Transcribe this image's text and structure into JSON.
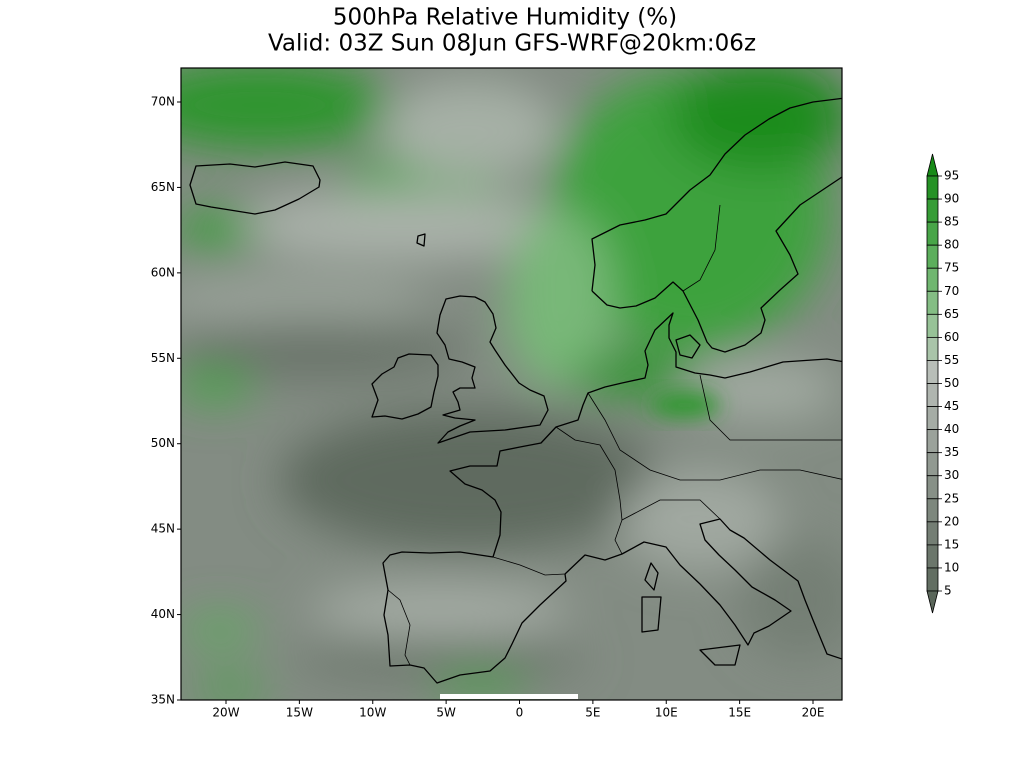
{
  "title": [
    "500hPa Relative Humidity (%)",
    "Valid: 03Z Sun 08Jun GFS-WRF@20km:06z"
  ],
  "lat_labels": [
    "70N",
    "65N",
    "60N",
    "55N",
    "50N",
    "45N",
    "40N",
    "35N"
  ],
  "lon_labels": [
    "20W",
    "15W",
    "10W",
    "5W",
    "0",
    "5E",
    "10E",
    "15E",
    "20E"
  ],
  "colorbar": {
    "labels": [
      95,
      90,
      85,
      80,
      75,
      70,
      65,
      60,
      55,
      50,
      45,
      40,
      35,
      30,
      25,
      20,
      15,
      10,
      5
    ],
    "colors": [
      "#178a17",
      "#269226",
      "#369c36",
      "#48a548",
      "#5cae5c",
      "#70b670",
      "#84bd84",
      "#97c297",
      "#a9c4a9",
      "#b8beb8",
      "#afb5af",
      "#a5aca5",
      "#9ba29b",
      "#919991",
      "#879087",
      "#7d877d",
      "#747e74",
      "#6b766b",
      "#626e62",
      "#5a665a"
    ]
  }
}
